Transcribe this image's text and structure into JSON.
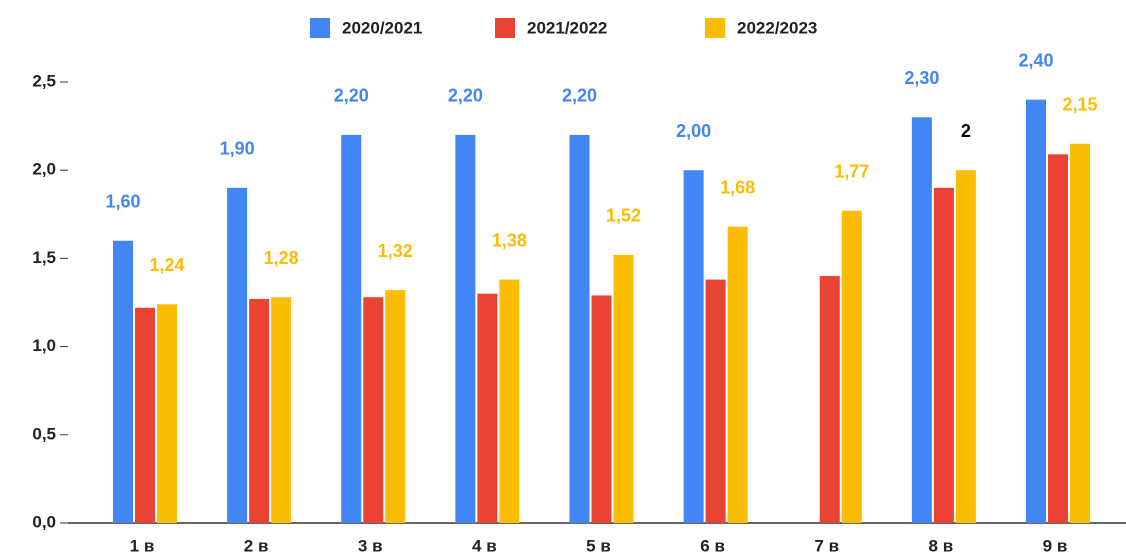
{
  "chart_data": {
    "type": "bar",
    "categories": [
      "1 в",
      "2 в",
      "3 в",
      "4 в",
      "5 в",
      "6 в",
      "7 в",
      "8 в",
      "9 в"
    ],
    "series": [
      {
        "name": "2020/2021",
        "color": "#4285f4",
        "label_color": "#4285f4",
        "values": [
          1.6,
          1.9,
          2.2,
          2.2,
          2.2,
          2.0,
          null,
          2.3,
          2.4
        ],
        "value_labels": [
          "1,60",
          "1,90",
          "2,20",
          "2,20",
          "2,20",
          "2,00",
          null,
          "2,30",
          "2,40"
        ]
      },
      {
        "name": "2021/2022",
        "color": "#ea4335",
        "values": [
          1.22,
          1.27,
          1.28,
          1.3,
          1.29,
          1.38,
          1.4,
          1.9,
          2.09
        ]
      },
      {
        "name": "2022/2023",
        "color": "#fbbc04",
        "label_color": "#fbbc04",
        "values": [
          1.24,
          1.28,
          1.32,
          1.38,
          1.52,
          1.68,
          1.77,
          2.0,
          2.15
        ],
        "value_labels": [
          "1,24",
          "1,28",
          "1,32",
          "1,38",
          "1,52",
          "1,68",
          "1,77",
          "2",
          "2,15"
        ],
        "label_colors": [
          "#fbbc04",
          "#fbbc04",
          "#fbbc04",
          "#fbbc04",
          "#fbbc04",
          "#fbbc04",
          "#fbbc04",
          "#000000",
          "#fbbc04"
        ]
      }
    ],
    "ylim": [
      0,
      2.5
    ],
    "yticks": [
      {
        "value": 0,
        "label": "0,0"
      },
      {
        "value": 0.5,
        "label": "0,5"
      },
      {
        "value": 1,
        "label": "1,0"
      },
      {
        "value": 1.5,
        "label": "1,5"
      },
      {
        "value": 2,
        "label": "2,0"
      },
      {
        "value": 2.5,
        "label": "2,5"
      }
    ],
    "legend": "top",
    "grid": false
  }
}
